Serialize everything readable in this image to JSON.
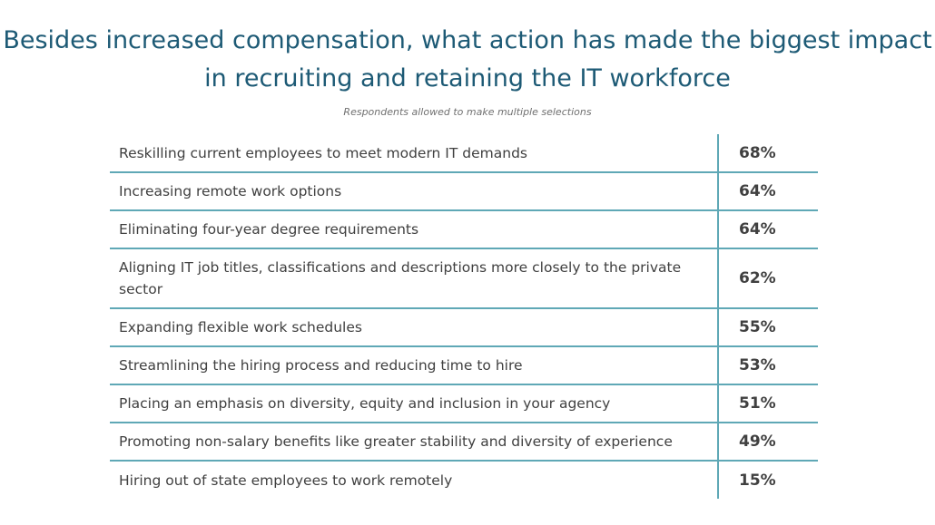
{
  "chart_data": {
    "type": "table",
    "title": "Besides increased compensation, what action has made the biggest impact in recruiting and retaining the IT workforce",
    "subtitle": "Respondents allowed to make multiple selections",
    "rows": [
      {
        "label": "Reskilling current employees to meet modern IT demands",
        "value": "68%"
      },
      {
        "label": "Increasing remote work options",
        "value": "64%"
      },
      {
        "label": "Eliminating four-year degree requirements",
        "value": "64%"
      },
      {
        "label": "Aligning IT job titles, classifications and descriptions more closely to the private sector",
        "value": "62%"
      },
      {
        "label": "Expanding flexible work schedules",
        "value": "55%"
      },
      {
        "label": "Streamlining the hiring process and reducing time to hire",
        "value": "53%"
      },
      {
        "label": "Placing an emphasis on diversity, equity and inclusion in your agency",
        "value": "51%"
      },
      {
        "label": "Promoting non-salary benefits like greater stability and diversity of experience",
        "value": "49%"
      },
      {
        "label": "Hiring out of state employees to work remotely",
        "value": "15%"
      }
    ],
    "colors": {
      "title": "#1d5a75",
      "rule": "#5fa8b6",
      "text": "#404040"
    }
  }
}
